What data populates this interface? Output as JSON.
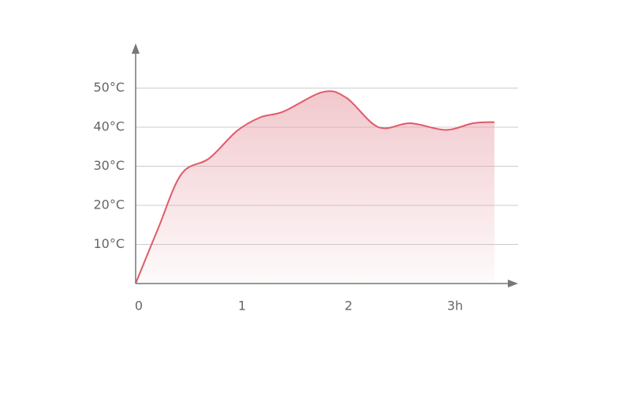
{
  "chart_data": {
    "type": "area",
    "x": [
      0,
      0.21,
      0.43,
      0.69,
      0.95,
      1.17,
      1.39,
      1.76,
      1.98,
      2.28,
      2.58,
      2.91,
      3.17,
      3.37
    ],
    "values": [
      0,
      14,
      28,
      32,
      39,
      42.5,
      44,
      49,
      47.5,
      40,
      41,
      39.3,
      41,
      41.3
    ],
    "color": "#e05a6a",
    "xlim": [
      0,
      3.6
    ],
    "xticks": [
      0,
      1,
      2,
      {
        "value": 3,
        "label": "3h"
      }
    ],
    "ylim": [
      0,
      60
    ],
    "yticks": [
      {
        "value": 10,
        "label": "10°C"
      },
      {
        "value": 20,
        "label": "20°C"
      },
      {
        "value": 30,
        "label": "30°C"
      },
      {
        "value": 40,
        "label": "40°C"
      },
      {
        "value": 50,
        "label": "50°C"
      }
    ],
    "grid": true
  }
}
